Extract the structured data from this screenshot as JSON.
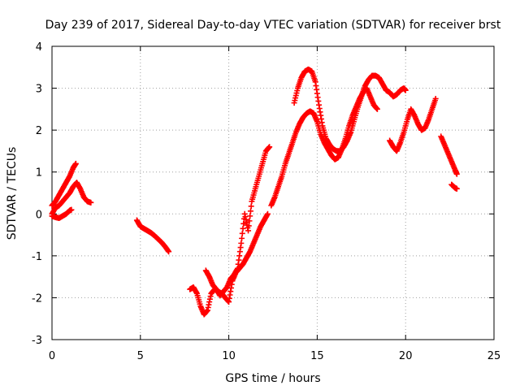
{
  "chart_data": {
    "type": "scatter",
    "title": "Day 239 of 2017, Sidereal Day-to-day VTEC variation (SDTVAR) for receiver brst",
    "xlabel": "GPS time / hours",
    "ylabel": "SDTVAR / TECUs",
    "xlim": [
      0,
      25
    ],
    "ylim": [
      -3,
      4
    ],
    "xticks": [
      "0",
      "5",
      "10",
      "15",
      "20",
      "25"
    ],
    "yticks": [
      "-3",
      "-2",
      "-1",
      "0",
      "1",
      "2",
      "3",
      "4"
    ],
    "grid": true,
    "marker": "plus",
    "point_color": "#ff0000",
    "series": [
      {
        "x": [
          0.0,
          0.2,
          0.4,
          0.6,
          0.8,
          1.0,
          1.2,
          1.35
        ],
        "y": [
          0.2,
          0.3,
          0.45,
          0.6,
          0.75,
          0.9,
          1.1,
          1.2
        ]
      },
      {
        "x": [
          0.0,
          0.2,
          0.4,
          0.6,
          0.8,
          1.0,
          1.2,
          1.4,
          1.6,
          1.8,
          2.0,
          2.2
        ],
        "y": [
          0.0,
          0.15,
          0.2,
          0.3,
          0.4,
          0.5,
          0.65,
          0.75,
          0.6,
          0.4,
          0.3,
          0.27
        ]
      },
      {
        "x": [
          0.0,
          0.2,
          0.4,
          0.6,
          0.8,
          1.0,
          1.1
        ],
        "y": [
          -0.05,
          -0.08,
          -0.1,
          -0.05,
          0.0,
          0.08,
          0.1
        ]
      },
      {
        "x": [
          4.8,
          5.0,
          5.2,
          5.4,
          5.6,
          5.8,
          6.0,
          6.2,
          6.4,
          6.6
        ],
        "y": [
          -0.15,
          -0.3,
          -0.35,
          -0.4,
          -0.45,
          -0.52,
          -0.6,
          -0.68,
          -0.78,
          -0.9
        ]
      },
      {
        "x": [
          7.8,
          8.0,
          8.2,
          8.4,
          8.6,
          8.8,
          9.0,
          9.2,
          9.4,
          9.6,
          9.8,
          10.0,
          10.2,
          10.4,
          10.6,
          10.8,
          11.0,
          11.2,
          11.4,
          11.6,
          11.8,
          12.0,
          12.2
        ],
        "y": [
          -1.8,
          -1.75,
          -1.9,
          -2.2,
          -2.4,
          -2.3,
          -1.9,
          -1.8,
          -1.85,
          -1.9,
          -2.0,
          -2.1,
          -1.6,
          -1.4,
          -1.3,
          -1.2,
          -1.05,
          -0.9,
          -0.7,
          -0.5,
          -0.3,
          -0.15,
          0.0
        ]
      },
      {
        "x": [
          8.7,
          8.9,
          9.1,
          9.3,
          9.5,
          9.7,
          9.9,
          10.1,
          10.3,
          10.5,
          10.7,
          10.9,
          11.1,
          11.3,
          11.5,
          11.7,
          11.9,
          12.1,
          12.3
        ],
        "y": [
          -1.35,
          -1.5,
          -1.7,
          -1.8,
          -1.95,
          -1.85,
          -1.75,
          -1.55,
          -1.45,
          -1.3,
          -0.7,
          0.0,
          -0.4,
          0.3,
          0.6,
          0.9,
          1.2,
          1.5,
          1.6
        ]
      },
      {
        "x": [
          12.4,
          12.6,
          12.8,
          13.0,
          13.2,
          13.4,
          13.6,
          13.8,
          14.0,
          14.2,
          14.4,
          14.6,
          14.8,
          15.0,
          15.2,
          15.4,
          15.6,
          15.8,
          16.0,
          16.2,
          16.4,
          16.6,
          16.8,
          17.0,
          17.2,
          17.4,
          17.6,
          17.8,
          18.0,
          18.2,
          18.4
        ],
        "y": [
          0.2,
          0.4,
          0.65,
          0.9,
          1.2,
          1.45,
          1.7,
          1.95,
          2.15,
          2.3,
          2.4,
          2.45,
          2.4,
          2.2,
          1.9,
          1.7,
          1.55,
          1.4,
          1.3,
          1.35,
          1.55,
          1.8,
          2.1,
          2.35,
          2.55,
          2.75,
          2.9,
          3.0,
          2.8,
          2.6,
          2.5
        ]
      },
      {
        "x": [
          13.7,
          13.9,
          14.1,
          14.3,
          14.5,
          14.7,
          14.9,
          15.1,
          15.3,
          15.5,
          15.7,
          15.9,
          16.1,
          16.3,
          16.5,
          16.7,
          16.9,
          17.1,
          17.3,
          17.5,
          17.7,
          17.9,
          18.1,
          18.3,
          18.5,
          18.7,
          18.9,
          19.1,
          19.3,
          19.5,
          19.7,
          19.9,
          20.0
        ],
        "y": [
          2.65,
          3.0,
          3.25,
          3.4,
          3.45,
          3.4,
          3.15,
          2.6,
          2.1,
          1.8,
          1.65,
          1.55,
          1.5,
          1.5,
          1.6,
          1.75,
          1.95,
          2.25,
          2.55,
          2.8,
          3.05,
          3.2,
          3.3,
          3.3,
          3.25,
          3.1,
          2.95,
          2.9,
          2.8,
          2.85,
          2.95,
          3.0,
          2.95
        ]
      },
      {
        "x": [
          19.1,
          19.3,
          19.5,
          19.7,
          19.9,
          20.1,
          20.3,
          20.5,
          20.7,
          20.9,
          21.1,
          21.3,
          21.5,
          21.7
        ],
        "y": [
          1.75,
          1.6,
          1.5,
          1.7,
          1.95,
          2.25,
          2.5,
          2.35,
          2.15,
          2.0,
          2.05,
          2.25,
          2.5,
          2.75
        ]
      },
      {
        "x": [
          22.0,
          22.2,
          22.4,
          22.6,
          22.8,
          22.9
        ],
        "y": [
          1.85,
          1.65,
          1.45,
          1.25,
          1.05,
          0.95
        ]
      },
      {
        "x": [
          22.6,
          22.8,
          22.9
        ],
        "y": [
          0.7,
          0.62,
          0.6
        ]
      }
    ]
  }
}
